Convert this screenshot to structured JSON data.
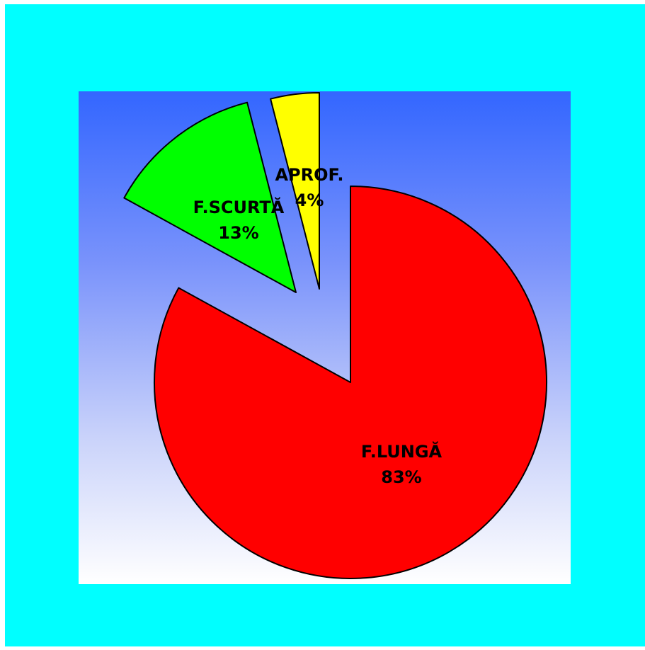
{
  "chart_data": {
    "type": "pie",
    "title": "",
    "exploded": true,
    "slices": [
      {
        "label": "F.LUNGĂ",
        "value": 83,
        "value_label": "83%",
        "color": "#ff0000"
      },
      {
        "label": "F.SCURTĂ",
        "value": 13,
        "value_label": "13%",
        "color": "#00ff00"
      },
      {
        "label": "APROF.",
        "value": 4,
        "value_label": "4%",
        "color": "#ffff00"
      }
    ]
  },
  "colors": {
    "frame_background": "#00ffff",
    "plot_gradient_top": "#3366ff",
    "plot_gradient_bottom": "#ffffff",
    "slice_outline": "#000000"
  }
}
